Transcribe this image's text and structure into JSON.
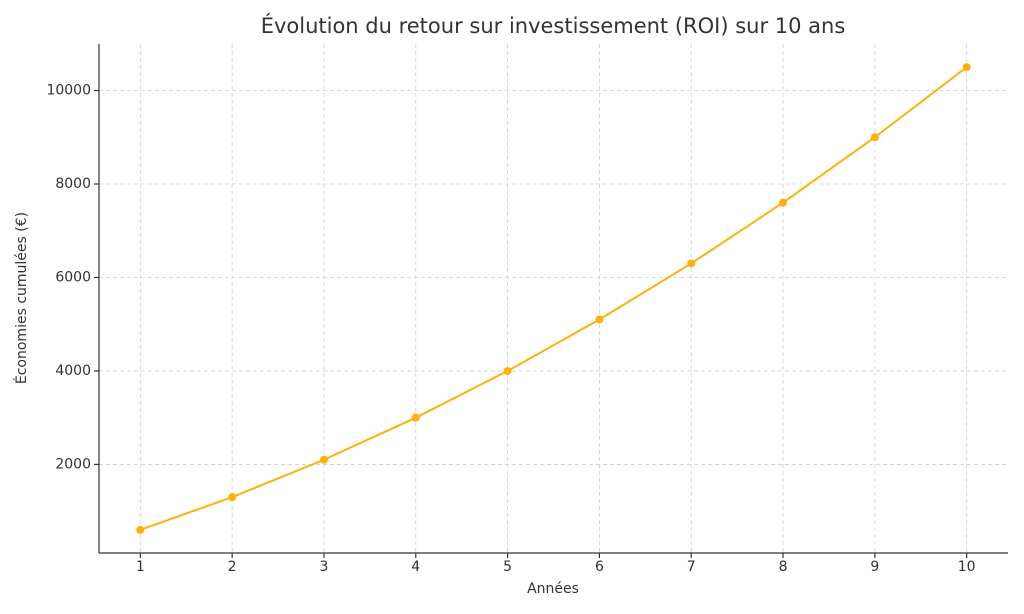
{
  "chart_data": {
    "type": "line",
    "title": "Évolution du retour sur investissement (ROI) sur 10 ans",
    "xlabel": "Années",
    "ylabel": "Économies cumulées (€)",
    "x": [
      1,
      2,
      3,
      4,
      5,
      6,
      7,
      8,
      9,
      10
    ],
    "series": [
      {
        "name": "ROI",
        "color": "#ffb10a",
        "values": [
          600,
          1300,
          2100,
          3000,
          4000,
          5100,
          6300,
          7600,
          9000,
          10500
        ]
      }
    ],
    "xlim": [
      0.55,
      10.45
    ],
    "xticks": [
      1,
      2,
      3,
      4,
      5,
      6,
      7,
      8,
      9,
      10
    ],
    "ylim": [
      105,
      10995
    ],
    "yticks": [
      2000,
      4000,
      6000,
      8000,
      10000
    ],
    "grid": true
  }
}
